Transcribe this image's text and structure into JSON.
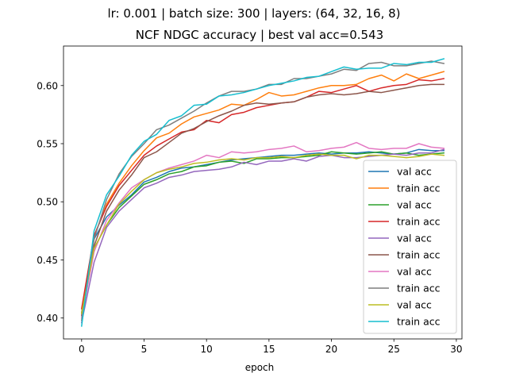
{
  "chart_data": {
    "type": "line",
    "suptitle": "lr: 0.001 | batch size: 300 | layers: (64, 32, 16, 8)",
    "title": "NCF NDGC accuracy | best val acc=0.543",
    "xlabel": "epoch",
    "ylabel": "",
    "xlim": [
      -1.45,
      30.45
    ],
    "ylim": [
      0.382,
      0.634
    ],
    "xticks": [
      0,
      5,
      10,
      15,
      20,
      25,
      30
    ],
    "yticks": [
      0.4,
      0.45,
      0.5,
      0.55,
      0.6
    ],
    "ytick_labels": [
      "0.40",
      "0.45",
      "0.50",
      "0.55",
      "0.60"
    ],
    "grid": false,
    "legend_position": "lower right",
    "x": [
      0,
      1,
      2,
      3,
      4,
      5,
      6,
      7,
      8,
      9,
      10,
      11,
      12,
      13,
      14,
      15,
      16,
      17,
      18,
      19,
      20,
      21,
      22,
      23,
      24,
      25,
      26,
      27,
      28,
      29
    ],
    "series": [
      {
        "name": "val acc",
        "color": "#1f77b4",
        "values": [
          0.405,
          0.468,
          0.487,
          0.497,
          0.506,
          0.517,
          0.521,
          0.526,
          0.529,
          0.53,
          0.532,
          0.534,
          0.536,
          0.537,
          0.538,
          0.539,
          0.54,
          0.54,
          0.541,
          0.542,
          0.541,
          0.542,
          0.542,
          0.543,
          0.542,
          0.541,
          0.542,
          0.545,
          0.544,
          0.544
        ]
      },
      {
        "name": "train acc",
        "color": "#ff7f0e",
        "values": [
          0.404,
          0.47,
          0.498,
          0.516,
          0.531,
          0.544,
          0.555,
          0.559,
          0.567,
          0.573,
          0.576,
          0.579,
          0.584,
          0.583,
          0.588,
          0.594,
          0.591,
          0.592,
          0.595,
          0.598,
          0.6,
          0.6,
          0.601,
          0.606,
          0.609,
          0.604,
          0.61,
          0.606,
          0.609,
          0.612
        ]
      },
      {
        "name": "val acc",
        "color": "#2ca02c",
        "values": [
          0.402,
          0.46,
          0.48,
          0.495,
          0.505,
          0.515,
          0.519,
          0.524,
          0.526,
          0.53,
          0.531,
          0.534,
          0.535,
          0.533,
          0.537,
          0.537,
          0.538,
          0.538,
          0.539,
          0.54,
          0.543,
          0.542,
          0.541,
          0.542,
          0.543,
          0.541,
          0.542,
          0.54,
          0.541,
          0.542
        ]
      },
      {
        "name": "train acc",
        "color": "#d62728",
        "values": [
          0.408,
          0.471,
          0.496,
          0.514,
          0.527,
          0.54,
          0.548,
          0.554,
          0.56,
          0.562,
          0.57,
          0.568,
          0.575,
          0.577,
          0.581,
          0.583,
          0.585,
          0.586,
          0.59,
          0.595,
          0.594,
          0.597,
          0.6,
          0.595,
          0.598,
          0.6,
          0.601,
          0.605,
          0.604,
          0.606
        ]
      },
      {
        "name": "val acc",
        "color": "#9467bd",
        "values": [
          0.396,
          0.448,
          0.478,
          0.492,
          0.502,
          0.512,
          0.516,
          0.521,
          0.523,
          0.526,
          0.527,
          0.528,
          0.53,
          0.534,
          0.532,
          0.535,
          0.535,
          0.537,
          0.535,
          0.539,
          0.54,
          0.538,
          0.538,
          0.539,
          0.54,
          0.541,
          0.54,
          0.542,
          0.542,
          0.545
        ]
      },
      {
        "name": "train acc",
        "color": "#8c564b",
        "values": [
          0.402,
          0.462,
          0.492,
          0.51,
          0.523,
          0.538,
          0.543,
          0.551,
          0.559,
          0.563,
          0.569,
          0.574,
          0.578,
          0.583,
          0.585,
          0.584,
          0.585,
          0.586,
          0.59,
          0.592,
          0.593,
          0.592,
          0.593,
          0.595,
          0.594,
          0.596,
          0.598,
          0.6,
          0.601,
          0.601
        ]
      },
      {
        "name": "val acc",
        "color": "#e377c2",
        "values": [
          0.4,
          0.457,
          0.484,
          0.499,
          0.512,
          0.519,
          0.525,
          0.529,
          0.532,
          0.535,
          0.54,
          0.538,
          0.543,
          0.542,
          0.543,
          0.545,
          0.546,
          0.548,
          0.543,
          0.544,
          0.546,
          0.547,
          0.551,
          0.546,
          0.545,
          0.546,
          0.546,
          0.55,
          0.547,
          0.546
        ]
      },
      {
        "name": "train acc",
        "color": "#7f7f7f",
        "values": [
          0.398,
          0.468,
          0.502,
          0.524,
          0.539,
          0.55,
          0.562,
          0.566,
          0.572,
          0.578,
          0.585,
          0.591,
          0.595,
          0.595,
          0.597,
          0.601,
          0.601,
          0.606,
          0.606,
          0.608,
          0.61,
          0.614,
          0.613,
          0.619,
          0.62,
          0.617,
          0.617,
          0.619,
          0.621,
          0.619
        ]
      },
      {
        "name": "val acc",
        "color": "#bcbd22",
        "values": [
          0.404,
          0.46,
          0.48,
          0.498,
          0.509,
          0.519,
          0.525,
          0.528,
          0.53,
          0.533,
          0.534,
          0.536,
          0.537,
          0.536,
          0.538,
          0.538,
          0.539,
          0.538,
          0.54,
          0.541,
          0.54,
          0.54,
          0.537,
          0.54,
          0.54,
          0.539,
          0.538,
          0.539,
          0.541,
          0.54
        ]
      },
      {
        "name": "train acc",
        "color": "#17becf",
        "values": [
          0.393,
          0.475,
          0.506,
          0.522,
          0.54,
          0.552,
          0.558,
          0.57,
          0.574,
          0.583,
          0.584,
          0.591,
          0.592,
          0.594,
          0.597,
          0.6,
          0.602,
          0.604,
          0.607,
          0.608,
          0.612,
          0.616,
          0.614,
          0.615,
          0.615,
          0.619,
          0.618,
          0.62,
          0.62,
          0.623
        ]
      }
    ]
  }
}
